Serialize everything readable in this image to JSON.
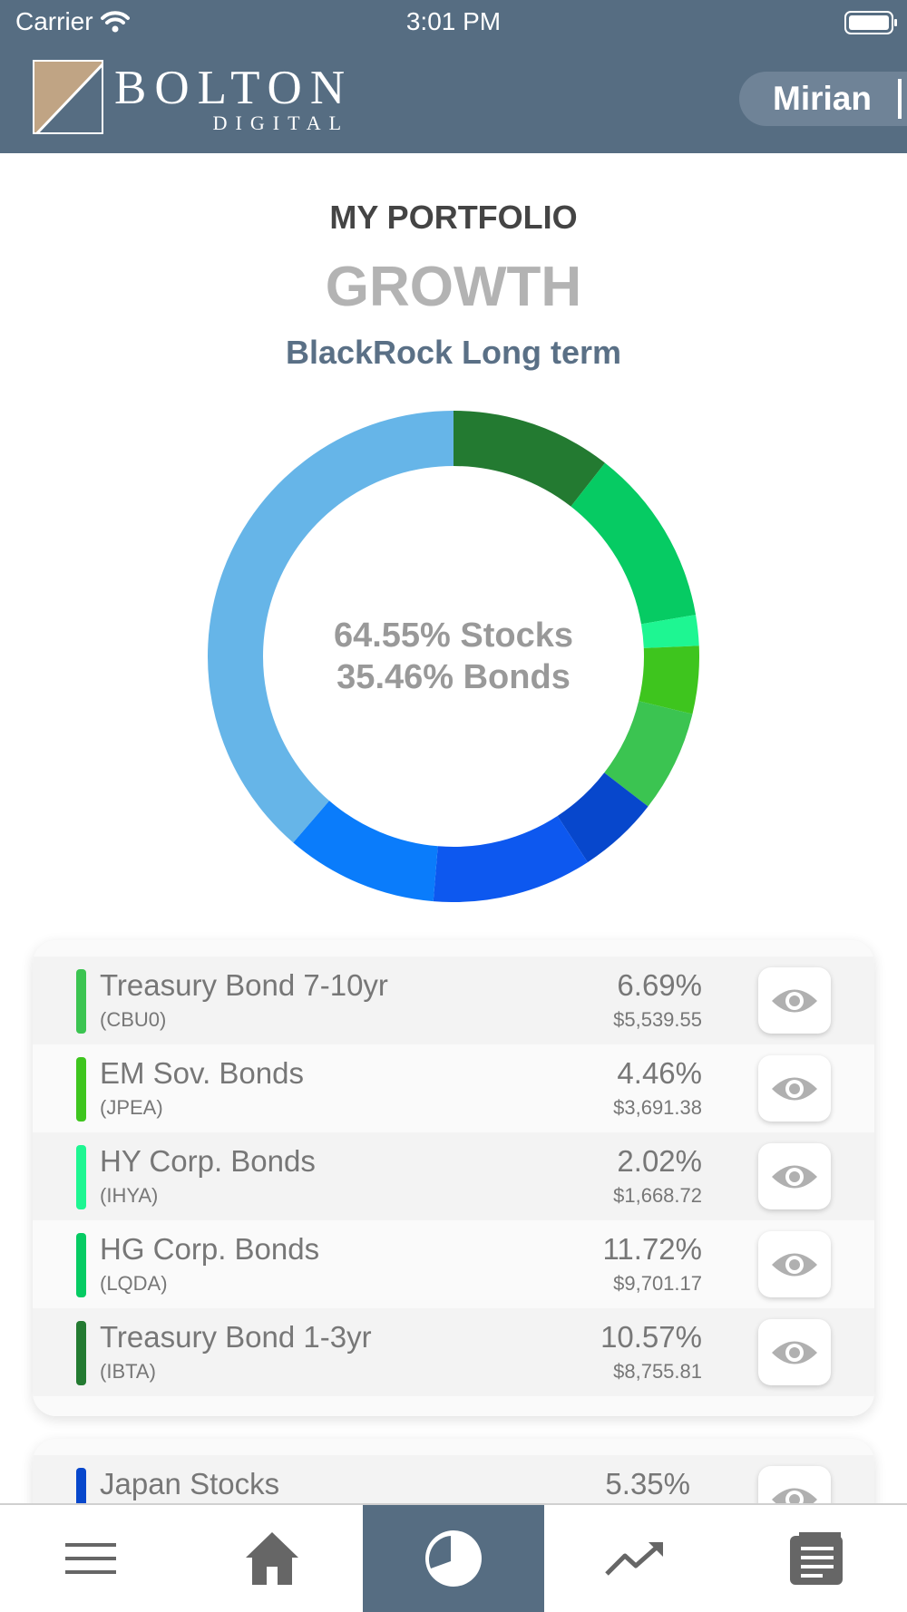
{
  "status_bar": {
    "carrier": "Carrier",
    "time": "3:01 PM"
  },
  "header": {
    "logo_main": "BOLTON",
    "logo_sub": "DIGITAL",
    "user_name": "Mirian"
  },
  "portfolio": {
    "label": "MY PORTFOLIO",
    "name": "GROWTH",
    "fund": "BlackRock Long term",
    "stocks_text": "64.55% Stocks",
    "bonds_text": "35.46% Bonds"
  },
  "donut": {
    "segments": [
      {
        "color": "#237a31",
        "value": 10.57
      },
      {
        "color": "#06cb63",
        "value": 11.72
      },
      {
        "color": "#1ef692",
        "value": 2.02
      },
      {
        "color": "#3ec51e",
        "value": 4.46
      },
      {
        "color": "#3bc451",
        "value": 6.69
      },
      {
        "color": "#0747cc",
        "value": 5.35
      },
      {
        "color": "#0d58ef",
        "value": 10.5
      },
      {
        "color": "#0a7cfb",
        "value": 10.0
      },
      {
        "color": "#66b5e8",
        "value": 38.69
      }
    ]
  },
  "bond_holdings": [
    {
      "name": "Treasury Bond 7-10yr",
      "ticker": "(CBU0)",
      "percent": "6.69%",
      "amount": "$5,539.55",
      "color": "#3bc451"
    },
    {
      "name": "EM Sov. Bonds",
      "ticker": "(JPEA)",
      "percent": "4.46%",
      "amount": "$3,691.38",
      "color": "#3ec51e"
    },
    {
      "name": "HY Corp. Bonds",
      "ticker": "(IHYA)",
      "percent": "2.02%",
      "amount": "$1,668.72",
      "color": "#1ef692"
    },
    {
      "name": "HG Corp. Bonds",
      "ticker": "(LQDA)",
      "percent": "11.72%",
      "amount": "$9,701.17",
      "color": "#06cb63"
    },
    {
      "name": "Treasury Bond 1-3yr",
      "ticker": "(IBTA)",
      "percent": "10.57%",
      "amount": "$8,755.81",
      "color": "#237a31"
    }
  ],
  "stock_holdings": [
    {
      "name": "Japan Stocks",
      "percent": "5.35%",
      "color": "#0747cc"
    }
  ],
  "tabbar": {
    "items": [
      {
        "icon": "menu-icon"
      },
      {
        "icon": "home-icon"
      },
      {
        "icon": "pie-chart-icon",
        "active": true
      },
      {
        "icon": "trending-up-icon"
      },
      {
        "icon": "document-icon"
      }
    ]
  },
  "colors": {
    "header_bg": "#566d82",
    "accent": "#566d82",
    "stocks_blue": "#66b5e8"
  }
}
